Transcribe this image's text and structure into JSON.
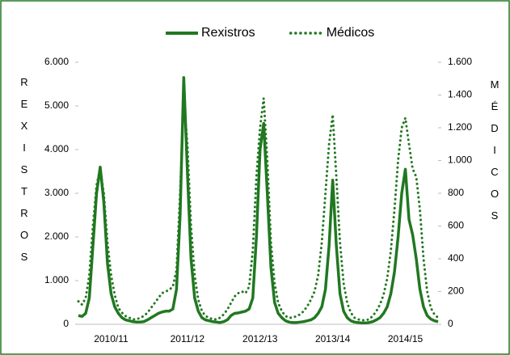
{
  "chart_data": {
    "type": "line",
    "y_label": "REXISTROS",
    "y2_label": "MÉDICOS",
    "categories": [
      null,
      null,
      null,
      null,
      null,
      null,
      null,
      null,
      null,
      "2010/11",
      null,
      null,
      null,
      null,
      null,
      null,
      null,
      null,
      null,
      null,
      null,
      null,
      null,
      null,
      null,
      null,
      null,
      null,
      null,
      null,
      "2011/12",
      null,
      null,
      null,
      null,
      null,
      null,
      null,
      null,
      null,
      null,
      null,
      null,
      null,
      null,
      null,
      null,
      null,
      null,
      null,
      "2012/13",
      null,
      null,
      null,
      null,
      null,
      null,
      null,
      null,
      null,
      null,
      null,
      null,
      null,
      null,
      null,
      null,
      null,
      null,
      null,
      "2013/14",
      null,
      null,
      null,
      null,
      null,
      null,
      null,
      null,
      null,
      null,
      null,
      null,
      null,
      null,
      null,
      null,
      null,
      null,
      null,
      "2014/15",
      null,
      null,
      null,
      null,
      null,
      null,
      null,
      null,
      null
    ],
    "series": [
      {
        "name": "Rexistros",
        "color": "#217821",
        "style": "solid",
        "values": [
          200,
          180,
          250,
          600,
          1800,
          3000,
          3600,
          2800,
          1400,
          700,
          400,
          250,
          150,
          100,
          80,
          60,
          50,
          50,
          60,
          100,
          150,
          200,
          250,
          280,
          300,
          300,
          350,
          800,
          2500,
          5650,
          3500,
          1500,
          600,
          300,
          150,
          100,
          80,
          60,
          50,
          40,
          60,
          100,
          200,
          250,
          260,
          280,
          300,
          350,
          600,
          2000,
          4000,
          4600,
          3000,
          1300,
          500,
          250,
          150,
          80,
          50,
          40,
          40,
          50,
          60,
          80,
          100,
          150,
          250,
          400,
          800,
          1800,
          3300,
          1800,
          700,
          300,
          150,
          80,
          50,
          40,
          30,
          30,
          40,
          60,
          100,
          150,
          250,
          400,
          700,
          1200,
          2000,
          3000,
          3550,
          2400,
          2050,
          1500,
          800,
          400,
          200,
          120,
          80,
          60
        ]
      },
      {
        "name": "Médicos",
        "color": "#217821",
        "style": "dotted",
        "axis": "y2",
        "values": [
          140,
          120,
          160,
          300,
          600,
          850,
          950,
          800,
          500,
          300,
          180,
          100,
          70,
          50,
          40,
          30,
          30,
          40,
          50,
          70,
          100,
          130,
          160,
          190,
          200,
          210,
          230,
          330,
          800,
          1390,
          1100,
          600,
          300,
          150,
          80,
          50,
          40,
          30,
          30,
          40,
          60,
          90,
          130,
          170,
          190,
          200,
          190,
          230,
          450,
          900,
          1200,
          1380,
          1000,
          500,
          250,
          130,
          80,
          50,
          40,
          40,
          50,
          60,
          80,
          110,
          150,
          200,
          300,
          500,
          800,
          1100,
          1280,
          900,
          500,
          250,
          130,
          70,
          40,
          30,
          25,
          25,
          30,
          50,
          80,
          120,
          180,
          280,
          450,
          700,
          1000,
          1200,
          1260,
          1100,
          950,
          900,
          700,
          400,
          200,
          100,
          60,
          40
        ]
      }
    ],
    "ylim": [
      0,
      6000
    ],
    "yticks": [
      0,
      {
        "value": 1000,
        "label": "1.000"
      },
      {
        "value": 2000,
        "label": "2.000"
      },
      {
        "value": 3000,
        "label": "3.000"
      },
      {
        "value": 4000,
        "label": "4.000"
      },
      {
        "value": 5000,
        "label": "5.000"
      },
      {
        "value": 6000,
        "label": "6.000"
      }
    ],
    "y2lim": [
      0,
      1600
    ],
    "y2ticks": [
      0,
      200,
      400,
      600,
      800,
      {
        "value": 1000,
        "label": "1.000"
      },
      {
        "value": 1200,
        "label": "1.200"
      },
      {
        "value": 1400,
        "label": "1.400"
      },
      {
        "value": 1600,
        "label": "1.600"
      }
    ],
    "grid": false,
    "legend": "top"
  }
}
